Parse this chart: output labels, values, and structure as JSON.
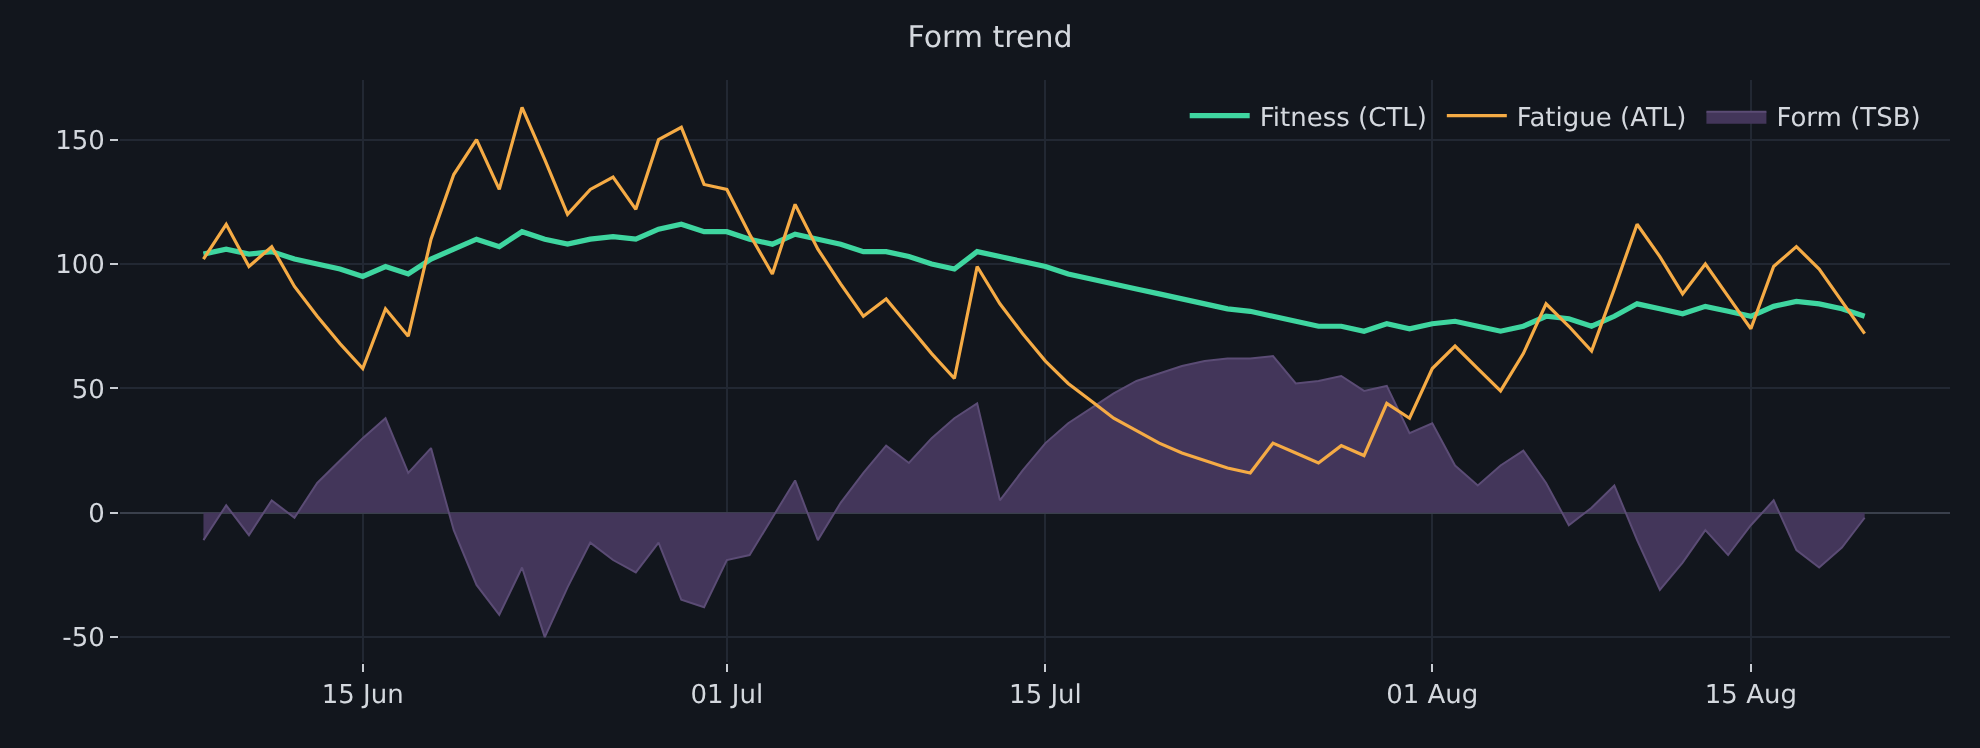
{
  "chart_data": {
    "type": "line",
    "title": "Form trend",
    "x": [
      "--06-08",
      "--06-09",
      "--06-10",
      "--06-11",
      "--06-12",
      "--06-13",
      "--06-14",
      "--06-15",
      "--06-16",
      "--06-17",
      "--06-18",
      "--06-19",
      "--06-20",
      "--06-21",
      "--06-22",
      "--06-23",
      "--06-24",
      "--06-25",
      "--06-26",
      "--06-27",
      "--06-28",
      "--06-29",
      "--06-30",
      "--07-01",
      "--07-02",
      "--07-03",
      "--07-04",
      "--07-05",
      "--07-06",
      "--07-07",
      "--07-08",
      "--07-09",
      "--07-10",
      "--07-11",
      "--07-12",
      "--07-13",
      "--07-14",
      "--07-15",
      "--07-16",
      "--07-17",
      "--07-18",
      "--07-19",
      "--07-20",
      "--07-21",
      "--07-22",
      "--07-23",
      "--07-24",
      "--07-25",
      "--07-26",
      "--07-27",
      "--07-28",
      "--07-29",
      "--07-30",
      "--07-31",
      "--08-01",
      "--08-02",
      "--08-03",
      "--08-04",
      "--08-05",
      "--08-06",
      "--08-07",
      "--08-08",
      "--08-09",
      "--08-10",
      "--08-11",
      "--08-12",
      "--08-13",
      "--08-14",
      "--08-15",
      "--08-16",
      "--08-17",
      "--08-18",
      "--08-19",
      "--08-20"
    ],
    "series": [
      {
        "name": "Fitness (CTL)",
        "color": "#3fd6a0",
        "values": [
          104,
          106,
          104,
          105,
          102,
          100,
          98,
          95,
          99,
          96,
          102,
          106,
          110,
          107,
          113,
          110,
          108,
          110,
          111,
          110,
          114,
          116,
          113,
          113,
          110,
          108,
          112,
          110,
          108,
          105,
          105,
          103,
          100,
          98,
          105,
          103,
          101,
          99,
          96,
          94,
          92,
          90,
          88,
          86,
          84,
          82,
          81,
          79,
          77,
          75,
          75,
          73,
          76,
          74,
          76,
          77,
          75,
          73,
          75,
          79,
          78,
          75,
          79,
          84,
          82,
          80,
          83,
          81,
          79,
          83,
          85,
          84,
          82,
          79
        ]
      },
      {
        "name": "Fatigue (ATL)",
        "color": "#f5ab45",
        "values": [
          102,
          116,
          99,
          107,
          91,
          79,
          68,
          58,
          82,
          71,
          110,
          136,
          150,
          130,
          163,
          142,
          120,
          130,
          135,
          122,
          150,
          155,
          132,
          130,
          112,
          96,
          124,
          106,
          92,
          79,
          86,
          75,
          64,
          54,
          99,
          84,
          72,
          61,
          52,
          45,
          38,
          33,
          28,
          24,
          21,
          18,
          16,
          28,
          24,
          20,
          27,
          23,
          44,
          38,
          58,
          67,
          58,
          49,
          64,
          84,
          75,
          65,
          90,
          116,
          103,
          88,
          100,
          87,
          74,
          99,
          107,
          98,
          85,
          72
        ]
      },
      {
        "name": "Form (TSB)",
        "type": "area",
        "color": "#43365a",
        "values": [
          -11,
          3,
          -9,
          5,
          -2,
          12,
          21,
          30,
          38,
          16,
          26,
          -7,
          -29,
          -41,
          -22,
          -50,
          -30,
          -12,
          -19,
          -24,
          -12,
          -35,
          -38,
          -19,
          -17,
          -2,
          13,
          -11,
          4,
          16,
          27,
          20,
          30,
          38,
          44,
          5,
          17,
          28,
          36,
          42,
          48,
          53,
          56,
          59,
          61,
          62,
          62,
          63,
          52,
          53,
          55,
          49,
          51,
          32,
          36,
          19,
          11,
          19,
          25,
          12,
          -5,
          2,
          11,
          -11,
          -31,
          -20,
          -7,
          -17,
          -5,
          5,
          -15,
          -22,
          -14,
          -2
        ]
      }
    ],
    "xlim": [
      "--06-04T08:00",
      "--08-23T18:00"
    ],
    "xticks": [
      {
        "value": "--06-15",
        "label": "15 Jun"
      },
      {
        "value": "--07-01",
        "label": "01 Jul"
      },
      {
        "value": "--07-15",
        "label": "15 Jul"
      },
      {
        "value": "--08-01",
        "label": "01 Aug"
      },
      {
        "value": "--08-15",
        "label": "15 Aug"
      }
    ],
    "ylim": [
      -60,
      174
    ],
    "yticks": [
      -50,
      0,
      50,
      100,
      150
    ],
    "grid": true,
    "legend": "top right"
  }
}
